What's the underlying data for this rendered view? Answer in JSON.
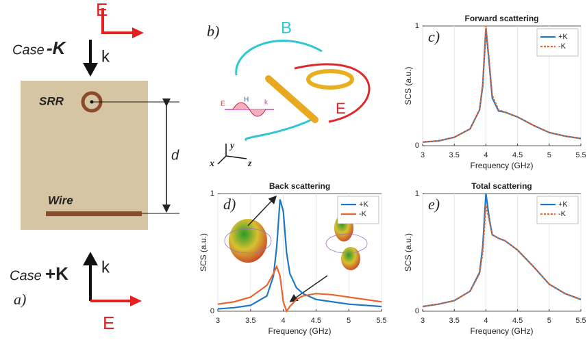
{
  "panels": {
    "a": {
      "label": "a)",
      "e_top": "E",
      "case_top": "Case",
      "sign_top": "-K",
      "k_top": "k",
      "srr": "SRR",
      "d": "d",
      "wire": "Wire",
      "case_bottom": "Case",
      "sign_bottom": "+K",
      "k_bottom": "k",
      "e_bottom": "E"
    },
    "b": {
      "label": "b)",
      "b_field": "B",
      "e_field": "E",
      "wave_e": "E",
      "wave_h": "H",
      "wave_k": "k",
      "axis_x": "x",
      "axis_y": "y",
      "axis_z": "z"
    }
  },
  "chart_data": [
    {
      "type": "line",
      "title": "Forward scattering",
      "panel_label": "c)",
      "xlabel": "Frequency (GHz)",
      "ylabel": "SCS (a.u.)",
      "x": [
        3,
        3.25,
        3.5,
        3.75,
        3.9,
        3.95,
        4.0,
        4.05,
        4.1,
        4.2,
        4.3,
        4.5,
        4.75,
        5,
        5.25,
        5.5
      ],
      "series": [
        {
          "name": "+K",
          "color": "#1f77c4",
          "style": "solid",
          "values": [
            0.03,
            0.04,
            0.07,
            0.14,
            0.3,
            0.5,
            0.98,
            0.7,
            0.4,
            0.29,
            0.28,
            0.24,
            0.17,
            0.11,
            0.08,
            0.06
          ]
        },
        {
          "name": "-K",
          "color": "#e8642a",
          "style": "dotted",
          "values": [
            0.03,
            0.04,
            0.07,
            0.14,
            0.3,
            0.52,
            1.0,
            0.72,
            0.42,
            0.3,
            0.28,
            0.24,
            0.17,
            0.11,
            0.08,
            0.06
          ]
        }
      ],
      "xlim": [
        3,
        5.5
      ],
      "ylim": [
        0,
        1
      ],
      "xticks": [
        3,
        3.5,
        4,
        4.5,
        5,
        5.5
      ],
      "yticks": [
        0,
        1
      ],
      "grid": true,
      "legend": "upper right"
    },
    {
      "type": "line",
      "title": "Back scattering",
      "panel_label": "d)",
      "xlabel": "Frequency (GHz)",
      "ylabel": "SCS (a.u.)",
      "x": [
        3,
        3.25,
        3.5,
        3.75,
        3.85,
        3.9,
        3.95,
        4.0,
        4.05,
        4.1,
        4.2,
        4.3,
        4.5,
        4.75,
        5,
        5.25,
        5.5
      ],
      "series": [
        {
          "name": "+K",
          "color": "#1f77c4",
          "style": "solid",
          "values": [
            0.02,
            0.03,
            0.05,
            0.13,
            0.3,
            0.55,
            0.95,
            0.85,
            0.5,
            0.32,
            0.2,
            0.15,
            0.1,
            0.08,
            0.06,
            0.05,
            0.04
          ]
        },
        {
          "name": "-K",
          "color": "#e8642a",
          "style": "solid",
          "values": [
            0.06,
            0.08,
            0.12,
            0.22,
            0.32,
            0.38,
            0.3,
            0.08,
            0.0,
            0.04,
            0.1,
            0.13,
            0.15,
            0.14,
            0.12,
            0.1,
            0.08
          ]
        }
      ],
      "xlim": [
        3,
        5.5
      ],
      "ylim": [
        0,
        1
      ],
      "xticks": [
        3,
        3.5,
        4,
        4.5,
        5,
        5.5
      ],
      "yticks": [
        0,
        1
      ],
      "grid": true,
      "legend": "upper right"
    },
    {
      "type": "line",
      "title": "Total scattering",
      "panel_label": "e)",
      "xlabel": "Frequency (GHz)",
      "ylabel": "SCS (a.u.)",
      "x": [
        3,
        3.25,
        3.5,
        3.75,
        3.9,
        3.95,
        4.0,
        4.05,
        4.1,
        4.2,
        4.3,
        4.5,
        4.75,
        5,
        5.25,
        5.5
      ],
      "series": [
        {
          "name": "+K",
          "color": "#1f77c4",
          "style": "solid",
          "values": [
            0.04,
            0.06,
            0.09,
            0.17,
            0.33,
            0.55,
            1.0,
            0.8,
            0.65,
            0.62,
            0.6,
            0.52,
            0.38,
            0.23,
            0.15,
            0.1
          ]
        },
        {
          "name": "-K",
          "color": "#e8642a",
          "style": "dotted",
          "values": [
            0.04,
            0.06,
            0.09,
            0.17,
            0.32,
            0.5,
            0.9,
            0.78,
            0.65,
            0.62,
            0.6,
            0.52,
            0.38,
            0.23,
            0.15,
            0.1
          ]
        }
      ],
      "xlim": [
        3,
        5.5
      ],
      "ylim": [
        0,
        1
      ],
      "xticks": [
        3,
        3.5,
        4,
        4.5,
        5,
        5.5
      ],
      "yticks": [
        0,
        1
      ],
      "grid": true,
      "legend": "upper right"
    }
  ]
}
